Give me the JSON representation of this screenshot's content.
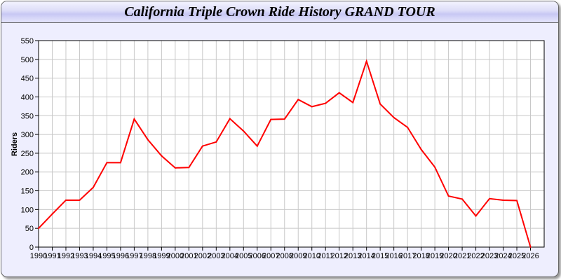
{
  "chart_data": {
    "type": "line",
    "title": "California Triple Crown Ride History GRAND TOUR",
    "xlabel": "",
    "ylabel": "Riders",
    "ylim": [
      0,
      550
    ],
    "xlim": [
      1990,
      2027
    ],
    "grid": true,
    "line_color": "#ff0000",
    "yticks": [
      "0",
      "50",
      "100",
      "150",
      "200",
      "250",
      "300",
      "350",
      "400",
      "450",
      "500",
      "550"
    ],
    "x": [
      1990,
      1991,
      1992,
      1993,
      1994,
      1995,
      1996,
      1997,
      1998,
      1999,
      2000,
      2001,
      2002,
      2003,
      2004,
      2005,
      2006,
      2007,
      2008,
      2009,
      2010,
      2011,
      2012,
      2013,
      2014,
      2015,
      2016,
      2017,
      2018,
      2019,
      2020,
      2021,
      2022,
      2023,
      2024,
      2025,
      2026
    ],
    "series": [
      {
        "values": [
          50,
          88,
          125,
          125,
          159,
          225,
          225,
          341,
          286,
          243,
          211,
          212,
          269,
          280,
          342,
          309,
          269,
          340,
          341,
          393,
          374,
          383,
          411,
          385,
          495,
          381,
          345,
          319,
          260,
          213,
          136,
          128,
          83,
          129,
          125,
          124,
          0
        ]
      }
    ]
  }
}
